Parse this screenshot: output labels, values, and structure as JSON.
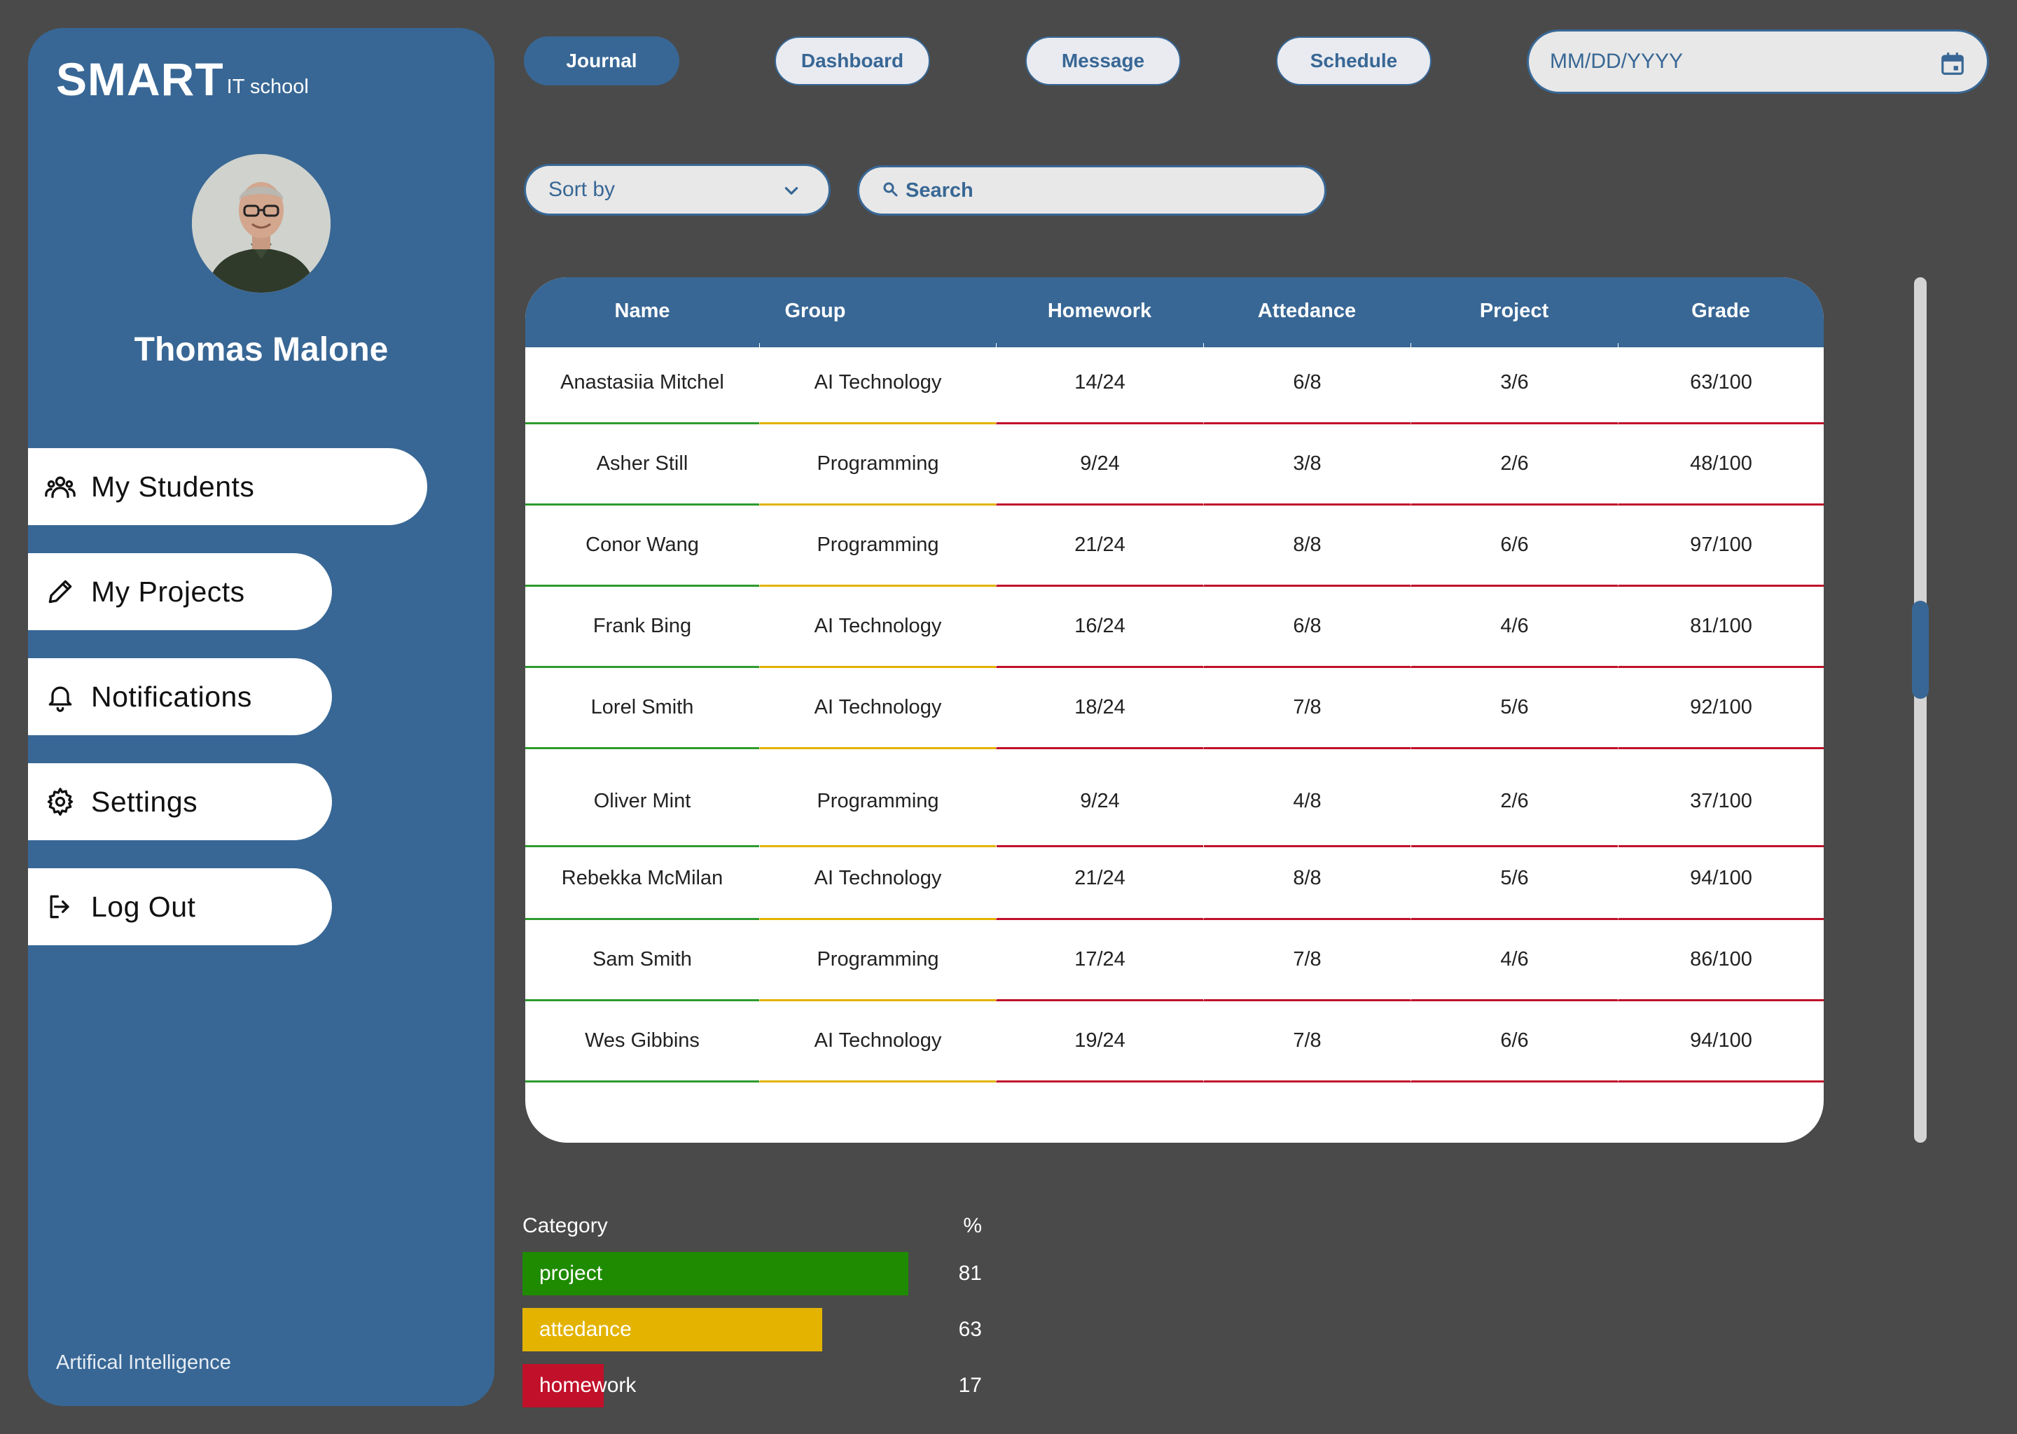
{
  "brand": {
    "main": "SMART",
    "sub": "IT school"
  },
  "profile": {
    "name": "Thomas Malone"
  },
  "nav": [
    {
      "label": "My Students",
      "icon": "users-icon"
    },
    {
      "label": "My Projects",
      "icon": "pencil-icon"
    },
    {
      "label": "Notifications",
      "icon": "bell-icon"
    },
    {
      "label": "Settings",
      "icon": "gear-icon"
    },
    {
      "label": "Log Out",
      "icon": "logout-icon"
    }
  ],
  "footer": "Artifical Intelligence",
  "topnav": [
    {
      "label": "Journal",
      "active": true
    },
    {
      "label": "Dashboard",
      "active": false
    },
    {
      "label": "Message",
      "active": false
    },
    {
      "label": "Schedule",
      "active": false
    }
  ],
  "date": {
    "placeholder": "MM/DD/YYYY",
    "icon": "calendar-icon"
  },
  "sort": {
    "label": "Sort by",
    "icon": "chevron-down-icon"
  },
  "search": {
    "label": "Search",
    "icon": "search-icon"
  },
  "table": {
    "headers": [
      "Name",
      "Group",
      "Homework",
      "Attedance",
      "Project",
      "Grade"
    ],
    "rows": [
      [
        "Anastasiia Mitchel",
        "AI Technology",
        "14/24",
        "6/8",
        "3/6",
        "63/100"
      ],
      [
        "Asher Still",
        "Programming",
        "9/24",
        "3/8",
        "2/6",
        "48/100"
      ],
      [
        "Conor Wang",
        "Programming",
        "21/24",
        "8/8",
        "6/6",
        "97/100"
      ],
      [
        "Frank Bing",
        "AI Technology",
        "16/24",
        "6/8",
        "4/6",
        "81/100"
      ],
      [
        "Lorel Smith",
        "AI Technology",
        "18/24",
        "7/8",
        "5/6",
        "92/100"
      ],
      [
        "Oliver Mint",
        "Programming",
        "9/24",
        "4/8",
        "2/6",
        "37/100"
      ],
      [
        "Rebekka McMilan",
        "AI Technology",
        "21/24",
        "8/8",
        "5/6",
        "94/100"
      ],
      [
        "Sam Smith",
        "Programming",
        "17/24",
        "7/8",
        "4/6",
        "86/100"
      ],
      [
        "Wes Gibbins",
        "AI Technology",
        "19/24",
        "7/8",
        "6/6",
        "94/100"
      ]
    ]
  },
  "summary": {
    "category_label": "Category",
    "percent_label": "%",
    "items": [
      {
        "label": "project",
        "value": 81,
        "color": "#1f8b00"
      },
      {
        "label": "attedance",
        "value": 63,
        "color": "#e3b300"
      },
      {
        "label": "homework",
        "value": 17,
        "color": "#c0102a"
      }
    ]
  },
  "colors": {
    "accent": "#386795",
    "background": "#4a4a4a"
  }
}
